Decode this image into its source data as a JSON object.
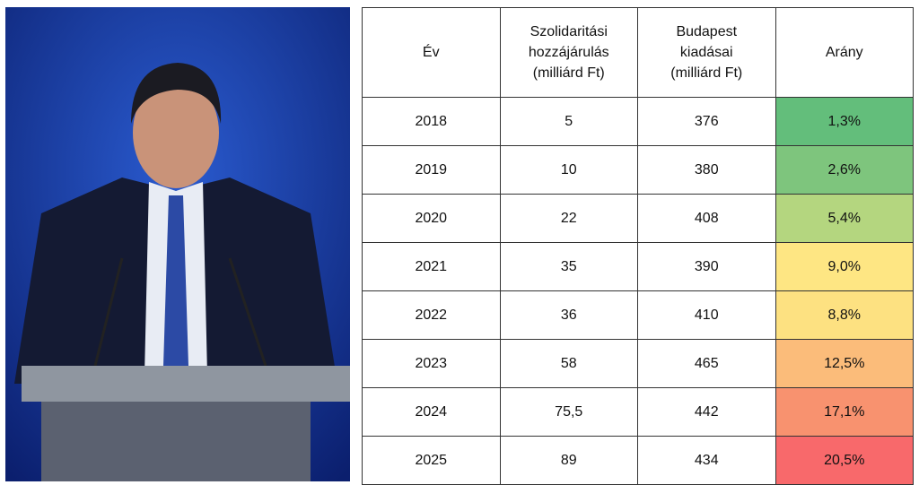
{
  "table": {
    "header": [
      "Év",
      "Szolidaritási hozzájárulás (milliárd Ft)",
      "Budapest kiadásai (milliárd Ft)",
      "Arány"
    ],
    "rows": [
      [
        "2018",
        "5",
        "376",
        "1,3%"
      ],
      [
        "2019",
        "10",
        "380",
        "2,6%"
      ],
      [
        "2020",
        "22",
        "408",
        "5,4%"
      ],
      [
        "2021",
        "35",
        "390",
        "9,0%"
      ],
      [
        "2022",
        "36",
        "410",
        "8,8%"
      ],
      [
        "2023",
        "58",
        "465",
        "12,5%"
      ],
      [
        "2024",
        "75,5",
        "442",
        "17,1%"
      ],
      [
        "2025",
        "89",
        "434",
        "20,5%"
      ]
    ]
  }
}
